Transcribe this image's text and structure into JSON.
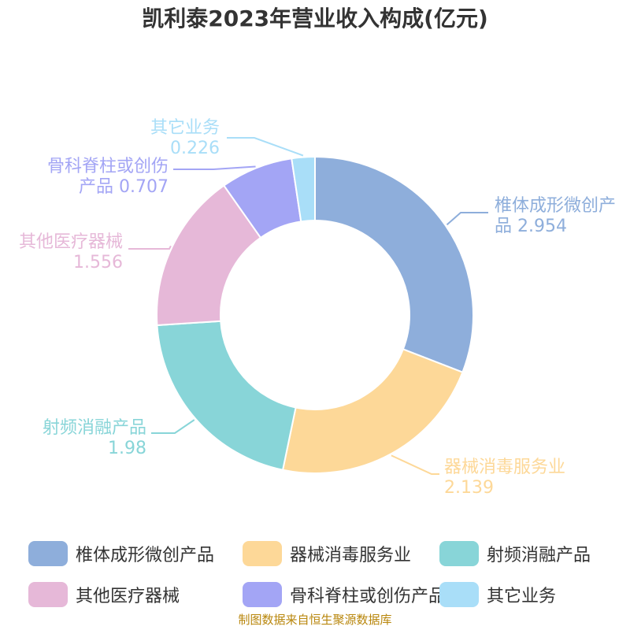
{
  "chart_data": {
    "type": "pie",
    "title": "凯利泰2023年营业收入构成(亿元)",
    "slices": [
      {
        "label": "椎体成形微创产品",
        "value": 2.954,
        "color": "#8eaedb"
      },
      {
        "label": "器械消毒服务业",
        "value": 2.139,
        "color": "#fdd898"
      },
      {
        "label": "射频消融产品",
        "value": 1.98,
        "color": "#88d5d8"
      },
      {
        "label": "其他医疗器械",
        "value": 1.556,
        "color": "#e6b8d8"
      },
      {
        "label": "骨科脊柱或创伤产品",
        "value": 0.707,
        "color": "#a3a5f5"
      },
      {
        "label": "其它业务",
        "value": 0.226,
        "color": "#a9def8"
      }
    ],
    "slice_text": [
      {
        "line1": "椎体成形微创产",
        "line2": "品 2.954"
      },
      {
        "line1": "器械消毒服务业",
        "line2": "2.139"
      },
      {
        "line1": "射频消融产品",
        "line2": "1.98"
      },
      {
        "line1": "其他医疗器械",
        "line2": "1.556"
      },
      {
        "line1": "骨科脊柱或创伤",
        "line2": "产品 0.707"
      },
      {
        "line1": "其它业务",
        "line2": "0.226"
      }
    ],
    "legend_position": "bottom"
  },
  "source_note": "制图数据来自恒生聚源数据库"
}
